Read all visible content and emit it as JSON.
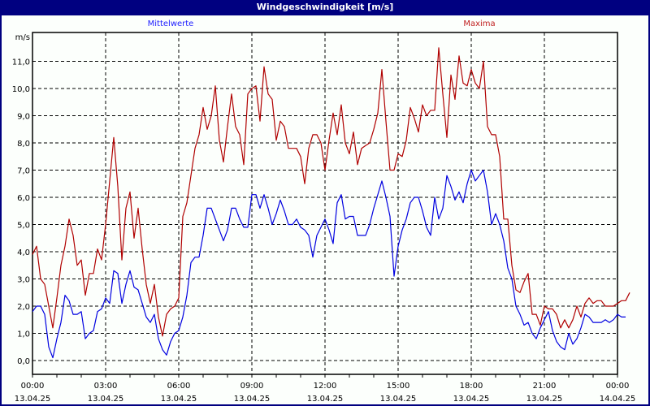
{
  "window": {
    "title": "Windgeschwindigkeit [m/s]"
  },
  "legend": {
    "mean_label": "Mittelwerte",
    "max_label": "Maxima",
    "mean_color": "#0000e0",
    "max_color": "#b00000"
  },
  "colors": {
    "frame": "#000080",
    "background": "#fcfffc",
    "grid": "#000000"
  },
  "chart_data": {
    "type": "line",
    "title": "Windgeschwindigkeit [m/s]",
    "xlabel": "",
    "ylabel": "m/s",
    "ylim": [
      -0.5,
      12.0
    ],
    "yticks": [
      "0,0",
      "1,0",
      "2,0",
      "3,0",
      "4,0",
      "5,0",
      "6,0",
      "7,0",
      "8,0",
      "9,0",
      "10,0",
      "11,0"
    ],
    "ytick_values": [
      0,
      1,
      2,
      3,
      4,
      5,
      6,
      7,
      8,
      9,
      10,
      11
    ],
    "xticks": [
      {
        "time": "00:00",
        "date": "13.04.25"
      },
      {
        "time": "03:00",
        "date": "13.04.25"
      },
      {
        "time": "06:00",
        "date": "13.04.25"
      },
      {
        "time": "09:00",
        "date": "13.04.25"
      },
      {
        "time": "12:00",
        "date": "13.04.25"
      },
      {
        "time": "15:00",
        "date": "13.04.25"
      },
      {
        "time": "18:00",
        "date": "13.04.25"
      },
      {
        "time": "21:00",
        "date": "13.04.25"
      },
      {
        "time": "00:00",
        "date": "14.04.25"
      }
    ],
    "grid": true,
    "legend_position": "top",
    "x_interval_minutes": 10,
    "series": [
      {
        "name": "Mittelwerte",
        "color": "#0000e0",
        "values": [
          1.8,
          2.0,
          2.0,
          1.7,
          0.5,
          0.1,
          0.8,
          1.4,
          2.4,
          2.2,
          1.7,
          1.7,
          1.8,
          0.8,
          1.0,
          1.1,
          1.8,
          1.9,
          2.3,
          2.1,
          3.3,
          3.2,
          2.1,
          2.8,
          3.3,
          2.7,
          2.6,
          2.1,
          1.6,
          1.4,
          1.7,
          0.8,
          0.4,
          0.2,
          0.7,
          1.0,
          1.1,
          1.6,
          2.4,
          3.6,
          3.8,
          3.8,
          4.6,
          5.6,
          5.6,
          5.2,
          4.8,
          4.4,
          4.8,
          5.6,
          5.6,
          5.2,
          4.9,
          4.9,
          6.1,
          6.1,
          5.6,
          6.1,
          5.6,
          5.0,
          5.4,
          5.9,
          5.5,
          5.0,
          5.0,
          5.2,
          4.9,
          4.8,
          4.6,
          3.8,
          4.6,
          4.9,
          5.2,
          4.8,
          4.3,
          5.8,
          6.1,
          5.2,
          5.3,
          5.3,
          4.6,
          4.6,
          4.6,
          5.0,
          5.6,
          6.1,
          6.6,
          6.0,
          5.3,
          3.1,
          4.2,
          4.8,
          5.2,
          5.8,
          6.0,
          6.0,
          5.5,
          4.9,
          4.6,
          6.0,
          5.2,
          5.6,
          6.8,
          6.4,
          5.9,
          6.2,
          5.8,
          6.5,
          7.0,
          6.6,
          6.8,
          7.0,
          6.2,
          5.0,
          5.4,
          5.0,
          4.4,
          3.4,
          3.0,
          2.0,
          1.7,
          1.3,
          1.4,
          1.0,
          0.8,
          1.2,
          1.5,
          1.8,
          1.1,
          0.7,
          0.5,
          0.4,
          1.0,
          0.6,
          0.8,
          1.2,
          1.7,
          1.6,
          1.4,
          1.4,
          1.4,
          1.5,
          1.4,
          1.5,
          1.7,
          1.6,
          1.6
        ]
      },
      {
        "name": "Maxima",
        "color": "#b00000",
        "values": [
          3.9,
          4.2,
          3.0,
          2.8,
          2.0,
          1.2,
          2.3,
          3.5,
          4.2,
          5.2,
          4.6,
          3.5,
          3.7,
          2.4,
          3.2,
          3.2,
          4.1,
          3.7,
          5.0,
          6.6,
          8.2,
          6.4,
          3.7,
          5.6,
          6.2,
          4.5,
          5.6,
          4.1,
          2.8,
          2.1,
          2.8,
          1.6,
          0.9,
          1.7,
          1.9,
          2.0,
          2.3,
          5.3,
          5.8,
          6.8,
          7.8,
          8.3,
          9.3,
          8.5,
          9.0,
          10.1,
          8.1,
          7.3,
          8.6,
          9.8,
          8.6,
          8.3,
          7.2,
          9.8,
          10.0,
          10.1,
          8.8,
          10.8,
          9.8,
          9.6,
          8.1,
          8.8,
          8.6,
          7.8,
          7.8,
          7.8,
          7.5,
          6.5,
          7.8,
          8.3,
          8.3,
          8.0,
          7.0,
          8.1,
          9.1,
          8.3,
          9.4,
          8.0,
          7.6,
          8.4,
          7.2,
          7.8,
          7.9,
          8.0,
          8.5,
          9.1,
          10.7,
          8.8,
          7.0,
          7.0,
          7.6,
          7.5,
          8.1,
          9.3,
          8.9,
          8.4,
          9.4,
          9.0,
          9.2,
          9.2,
          11.5,
          9.8,
          8.2,
          10.5,
          9.6,
          11.2,
          10.2,
          10.1,
          10.7,
          10.2,
          10.0,
          11.0,
          8.6,
          8.3,
          8.3,
          7.5,
          5.2,
          5.2,
          3.5,
          2.6,
          2.5,
          2.9,
          3.2,
          1.7,
          1.7,
          1.3,
          2.0,
          1.9,
          1.9,
          1.7,
          1.2,
          1.5,
          1.2,
          1.5,
          2.0,
          1.6,
          2.1,
          2.3,
          2.1,
          2.2,
          2.2,
          2.0,
          2.0,
          2.0,
          2.1,
          2.2,
          2.2,
          2.5
        ]
      }
    ]
  }
}
